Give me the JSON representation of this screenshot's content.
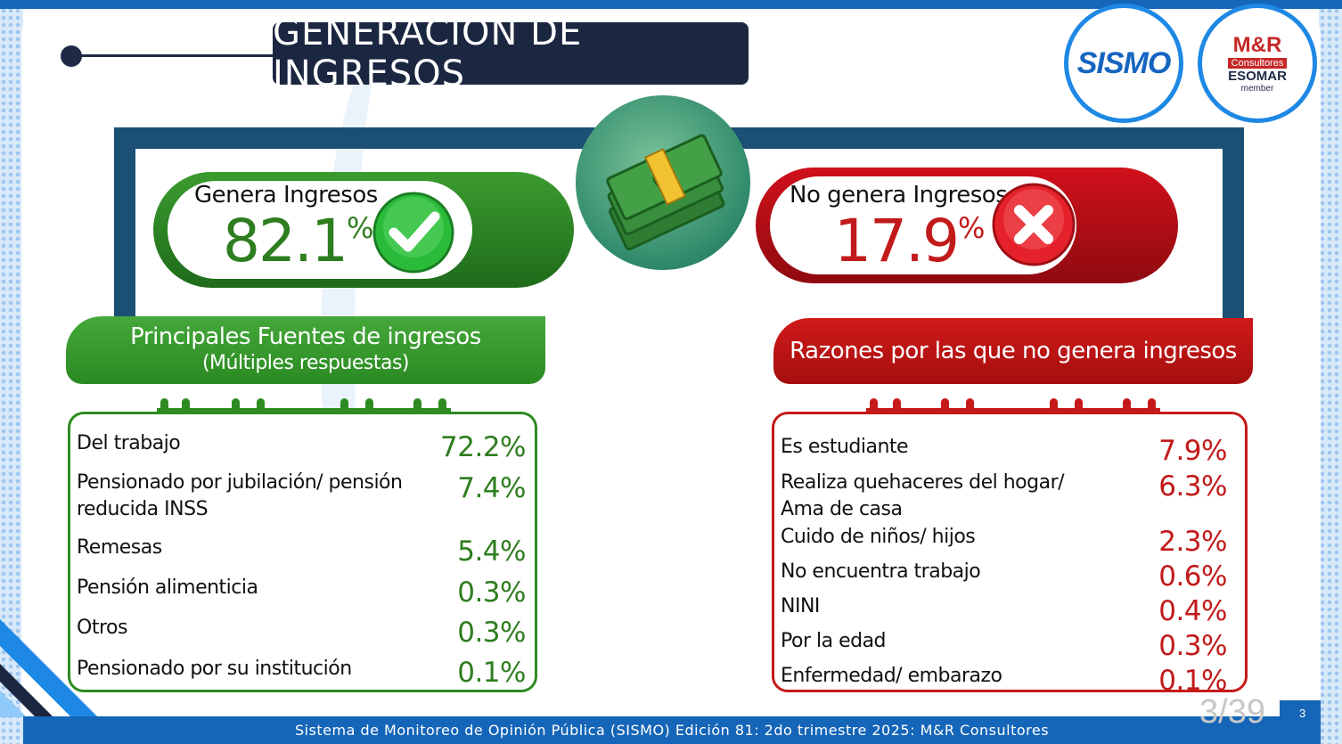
{
  "title": "GENERACIÓN DE INGRESOS",
  "logos": {
    "sismo": "SISMO",
    "mr": "M&R",
    "mr_sub": "Consultores",
    "esomar": "ESOMAR",
    "member": "member"
  },
  "genera": {
    "label": "Genera Ingresos",
    "value": "82.1",
    "unit": "%"
  },
  "no_genera": {
    "label": "No genera Ingresos",
    "value": "17.9",
    "unit": "%"
  },
  "fuentes": {
    "title": "Principales Fuentes de ingresos",
    "subtitle": "(Múltiples respuestas)",
    "items": [
      {
        "label": "Del trabajo",
        "value": "72.2%"
      },
      {
        "label": "Pensionado por jubilación/ pensión reducida INSS",
        "value": "7.4%"
      },
      {
        "label": "Remesas",
        "value": "5.4%"
      },
      {
        "label": "Pensión alimenticia",
        "value": "0.3%"
      },
      {
        "label": "Otros",
        "value": "0.3%"
      },
      {
        "label": "Pensionado por su institución",
        "value": "0.1%"
      }
    ]
  },
  "razones": {
    "title": "Razones por las que no genera ingresos",
    "items": [
      {
        "label": "Es estudiante",
        "value": "7.9%"
      },
      {
        "label": "Realiza quehaceres del hogar/ Ama de casa",
        "value": "6.3%"
      },
      {
        "label": "Cuido de niños/ hijos",
        "value": "2.3%"
      },
      {
        "label": "No encuentra trabajo",
        "value": "0.6%"
      },
      {
        "label": "NINI",
        "value": "0.4%"
      },
      {
        "label": "Por la edad",
        "value": "0.3%"
      },
      {
        "label": "Enfermedad/ embarazo",
        "value": "0.1%"
      }
    ]
  },
  "footer": "Sistema de Monitoreo de Opinión Pública (SISMO) Edición 81: 2do trimestre 2025: M&R Consultores",
  "page_number": "3",
  "page_overlay": "3/39",
  "colors": {
    "green": "#2e8b22",
    "red": "#c61a1a",
    "navy": "#1b2640",
    "blue": "#1565b8"
  }
}
